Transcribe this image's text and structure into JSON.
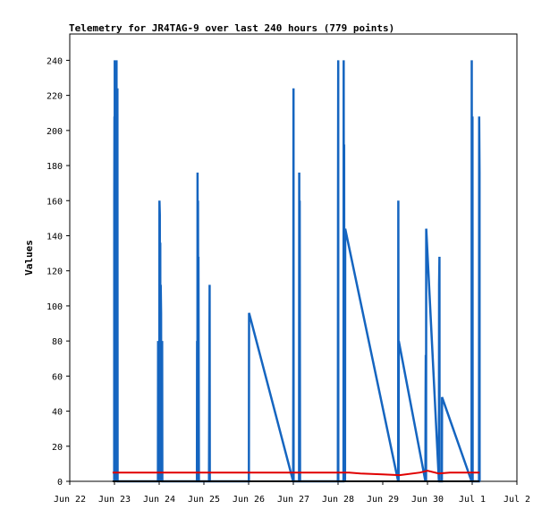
{
  "chart_data": {
    "type": "line",
    "title": "Telemetry for JR4TAG-9 over last 240 hours (779 points)",
    "xlabel": "",
    "ylabel": "Values",
    "x_tick_labels": [
      "Jun 22",
      "Jun 23",
      "Jun 24",
      "Jun 25",
      "Jun 26",
      "Jun 27",
      "Jun 28",
      "Jun 29",
      "Jun 30",
      "Jul 1",
      "Jul 2"
    ],
    "ylim": [
      0,
      255
    ],
    "xlim": [
      "2024-06-22T00:00",
      "2024-07-02T00:00"
    ],
    "y_ticks": [
      0,
      20,
      40,
      60,
      80,
      100,
      120,
      140,
      160,
      180,
      200,
      220,
      240
    ],
    "grid": false,
    "colors": {
      "series_blue": "#1565c0",
      "series_red": "#e00000",
      "series_black": "#000000"
    },
    "series": [
      {
        "color": "blue",
        "x": [
          "2024-06-22T23:50",
          "2024-06-22T23:55",
          "2024-06-23T00:00",
          "2024-06-23T00:05",
          "2024-06-23T00:10",
          "2024-06-23T00:20",
          "2024-06-23T00:25",
          "2024-06-23T00:30",
          "2024-06-23T00:40",
          "2024-06-23T00:45",
          "2024-06-23T00:50",
          "2024-06-23T01:00",
          "2024-06-23T01:05",
          "2024-06-23T01:10",
          "2024-06-23T01:15",
          "2024-06-23T01:20",
          "2024-06-23T01:30",
          "2024-06-23T01:35",
          "2024-06-23T01:40",
          "2024-06-23T01:50",
          "2024-06-23T01:55",
          "2024-06-23T02:00",
          "2024-06-23T02:10",
          "2024-06-23T02:15",
          "2024-06-23T23:20",
          "2024-06-23T23:25",
          "2024-06-23T23:30",
          "2024-06-23T23:40",
          "2024-06-23T23:45",
          "2024-06-24T00:00",
          "2024-06-24T00:05",
          "2024-06-24T00:10",
          "2024-06-24T00:20",
          "2024-06-24T00:25",
          "2024-06-24T00:35",
          "2024-06-24T00:40",
          "2024-06-24T00:50",
          "2024-06-24T01:00",
          "2024-06-24T01:10",
          "2024-06-24T01:20",
          "2024-06-24T01:30",
          "2024-06-24T01:35",
          "2024-06-24T01:40",
          "2024-06-24T01:50",
          "2024-06-24T01:55",
          "2024-06-24T20:15",
          "2024-06-24T20:20",
          "2024-06-24T20:30",
          "2024-06-24T20:35",
          "2024-06-24T20:45",
          "2024-06-24T20:50",
          "2024-06-24T21:00",
          "2024-06-24T21:05",
          "2024-06-24T21:20",
          "2024-06-24T21:25",
          "2024-06-25T02:45",
          "2024-06-25T02:50",
          "2024-06-25T03:05",
          "2024-06-25T03:10",
          "2024-06-26T00:10",
          "2024-06-26T00:15",
          "2024-06-26T23:55",
          "2024-06-27T00:00",
          "2024-06-27T00:05",
          "2024-06-27T00:10",
          "2024-06-27T03:05",
          "2024-06-27T03:10",
          "2024-06-27T03:20",
          "2024-06-27T03:25",
          "2024-06-27T03:35",
          "2024-06-27T03:40",
          "2024-06-27T23:55",
          "2024-06-28T00:00",
          "2024-06-28T00:05",
          "2024-06-28T00:10",
          "2024-06-28T02:55",
          "2024-06-28T03:00",
          "2024-06-28T03:10",
          "2024-06-28T03:15",
          "2024-06-28T03:25",
          "2024-06-28T03:30",
          "2024-06-28T03:45",
          "2024-06-28T03:50",
          "2024-06-29T08:15",
          "2024-06-29T08:20",
          "2024-06-29T08:30",
          "2024-06-29T08:35",
          "2024-06-29T22:55",
          "2024-06-29T23:00",
          "2024-06-29T23:05",
          "2024-06-29T23:15",
          "2024-06-29T23:20",
          "2024-06-30T06:10",
          "2024-06-30T06:15",
          "2024-06-30T06:25",
          "2024-06-30T06:30",
          "2024-06-30T07:45",
          "2024-06-30T07:50",
          "2024-06-30T23:40",
          "2024-06-30T23:45",
          "2024-06-30T23:50",
          "2024-06-30T23:55",
          "2024-07-01T00:00",
          "2024-07-01T00:05",
          "2024-07-01T00:10",
          "2024-07-01T00:15",
          "2024-07-01T03:40",
          "2024-07-01T03:45",
          "2024-07-01T03:55",
          "2024-07-01T04:00"
        ],
        "y": [
          0,
          160,
          208,
          0,
          240,
          96,
          0,
          112,
          0,
          160,
          176,
          0,
          240,
          0,
          80,
          208,
          0,
          224,
          0,
          0,
          0,
          0,
          0,
          0,
          0,
          80,
          0,
          64,
          0,
          32,
          0,
          160,
          152,
          0,
          136,
          0,
          112,
          96,
          0,
          64,
          0,
          80,
          0,
          0,
          0,
          0,
          80,
          0,
          176,
          0,
          160,
          0,
          128,
          0,
          0,
          0,
          32,
          112,
          0,
          0,
          96,
          0,
          64,
          224,
          0,
          0,
          176,
          0,
          160,
          0,
          0,
          0,
          160,
          240,
          0,
          0,
          240,
          0,
          192,
          0,
          84,
          0,
          144,
          0,
          160,
          0,
          80,
          0,
          48,
          72,
          0,
          144,
          0,
          112,
          128,
          0,
          0,
          48,
          0,
          240,
          36,
          0,
          144,
          0,
          208,
          0,
          0,
          208,
          176,
          0
        ]
      },
      {
        "color": "red",
        "x": [
          "2024-06-22T23:00",
          "2024-06-28T06:00",
          "2024-06-28T12:00",
          "2024-06-29T00:00",
          "2024-06-29T09:00",
          "2024-06-29T20:00",
          "2024-06-30T00:00",
          "2024-06-30T06:00",
          "2024-06-30T12:00",
          "2024-07-01T04:00"
        ],
        "y": [
          5,
          5,
          4.5,
          4,
          3.5,
          5,
          6,
          4.5,
          5,
          5
        ]
      },
      {
        "color": "black",
        "x": [
          "2024-06-22T23:00",
          "2024-07-01T04:00"
        ],
        "y": [
          0,
          0
        ]
      }
    ]
  }
}
